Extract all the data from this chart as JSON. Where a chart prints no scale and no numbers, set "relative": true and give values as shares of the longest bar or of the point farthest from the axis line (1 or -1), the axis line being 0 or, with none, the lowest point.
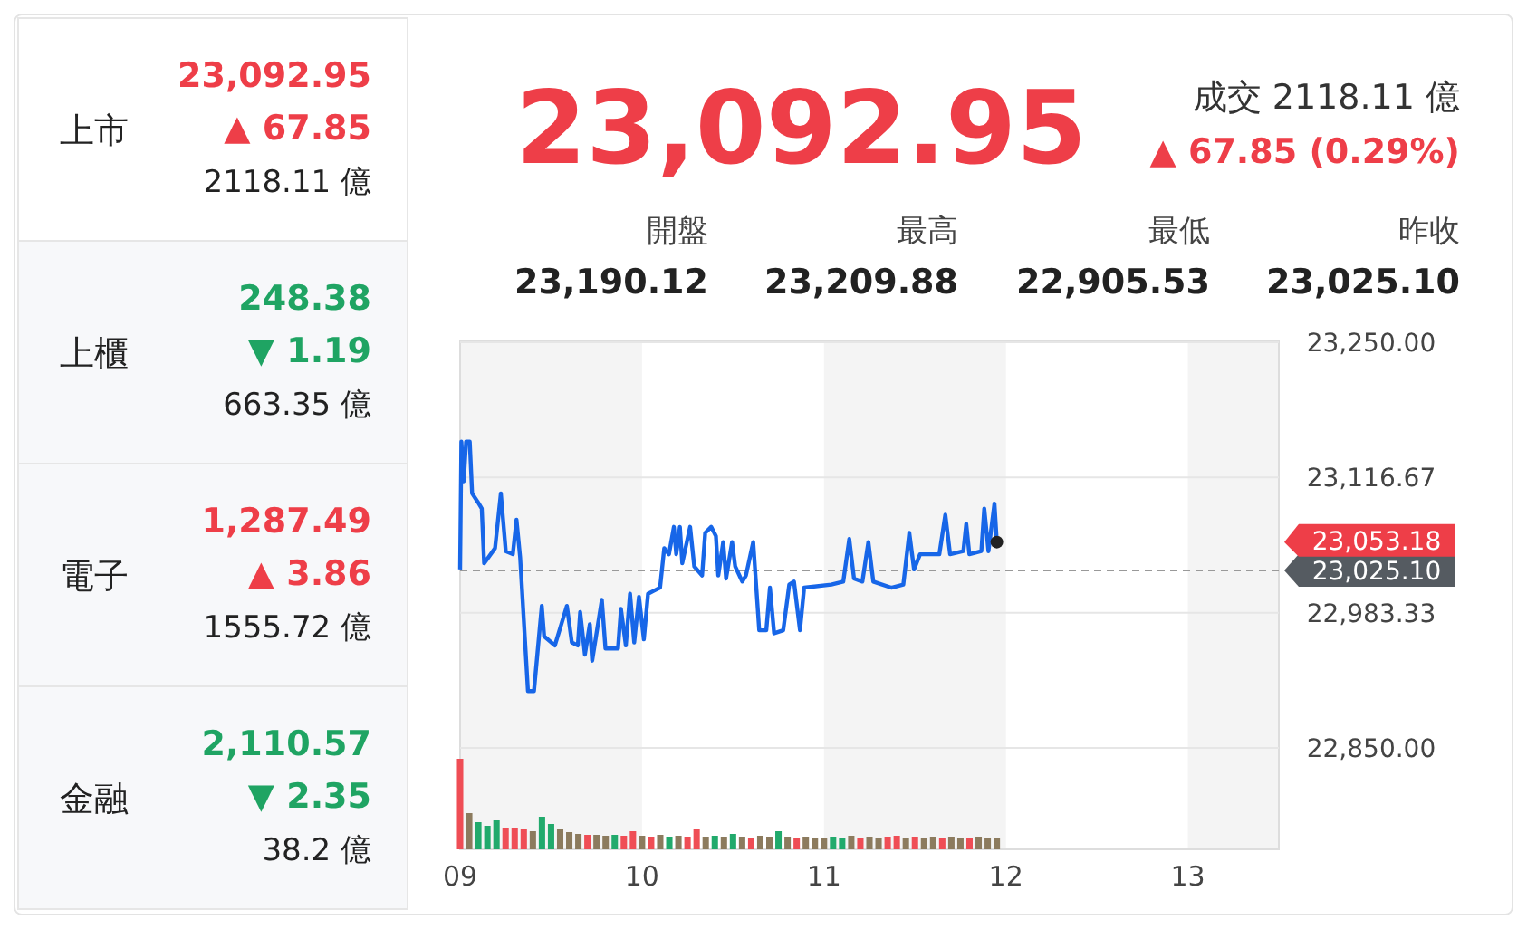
{
  "chart_data": [
    {
      "type": "other",
      "categories": [
        "上市",
        "上櫃",
        "電子",
        "金融"
      ],
      "annotations": [
        "23,092.95",
        "▲ 67.85",
        "2118.11 億",
        "248.38",
        "▼ 1.19",
        "663.35 億",
        "1,287.49",
        "▲ 3.86",
        "1555.72 億",
        "2,110.57",
        "▼ 2.35",
        "38.2 億"
      ]
    },
    {
      "type": "line",
      "title": "23,092.95",
      "annotations": [
        "成交 2118.11 億",
        "▲ 67.85 (0.29%)",
        "開盤",
        "最高",
        "最低",
        "昨收",
        "23,190.12",
        "23,209.88",
        "22,905.53",
        "23,025.10",
        "23,053.18"
      ],
      "xlim": [
        9,
        13.5
      ],
      "ylim": [
        22850,
        23250
      ],
      "yticks": [
        {
          "value": 23250,
          "label": "23,250.00"
        },
        {
          "value": 23116.67,
          "label": "23,116.67"
        },
        {
          "value": 22983.33,
          "label": "22,983.33"
        },
        {
          "value": 22850,
          "label": "22,850.00"
        }
      ],
      "grid": "y",
      "tick_labels": "y",
      "bands": [
        {
          "axis": "x",
          "from": 9,
          "to": 10,
          "color": "#f4f4f4"
        },
        {
          "axis": "x",
          "from": 11,
          "to": 12,
          "color": "#f4f4f4"
        },
        {
          "axis": "x",
          "from": 13,
          "to": 13.5,
          "color": "#f4f4f4"
        }
      ],
      "ref_lines": [
        {
          "axis": "y",
          "value": 23025.1,
          "label": "23,025.10",
          "color": "#999999",
          "line_style": "dashed"
        }
      ],
      "series": [
        {
          "color": "#1766e8",
          "x": [
            9.0,
            9.007,
            9.02,
            9.033,
            9.053,
            9.066,
            9.099,
            9.119,
            9.132,
            9.192,
            9.224,
            9.251,
            9.29,
            9.31,
            9.33,
            9.373,
            9.406,
            9.449,
            9.462,
            9.521,
            9.587,
            9.614,
            9.647,
            9.66,
            9.686,
            9.713,
            9.726,
            9.779,
            9.799,
            9.868,
            9.884,
            9.911,
            9.934,
            9.957,
            9.983,
            10.01,
            10.033,
            10.066,
            10.099,
            10.122,
            10.148,
            10.175,
            10.188,
            10.208,
            10.221,
            10.264,
            10.287,
            10.33,
            10.347,
            10.38,
            10.406,
            10.419,
            10.446,
            10.462,
            10.495,
            10.512,
            10.551,
            10.571,
            10.611,
            10.644,
            10.683,
            10.703,
            10.726,
            10.776,
            10.809,
            10.835,
            10.868,
            10.891,
            11.04,
            11.106,
            11.139,
            11.165,
            11.211,
            11.244,
            11.271,
            11.37,
            11.436,
            11.469,
            11.495,
            11.528,
            11.634,
            11.667,
            11.693,
            11.766,
            11.782,
            11.799,
            11.865,
            11.881,
            11.904,
            11.937,
            11.95
          ],
          "values": [
            23026,
            23152,
            23113,
            23152,
            23152,
            23101,
            23092,
            23086,
            23032,
            23047,
            23101,
            23044,
            23041,
            23075,
            23038,
            22906,
            22906,
            22990,
            22960,
            22951,
            22990,
            22954,
            22951,
            22984,
            22942,
            22972,
            22936,
            22996,
            22948,
            22948,
            22987,
            22951,
            23002,
            22954,
            22999,
            22957,
            23002,
            23005,
            23008,
            23047,
            23041,
            23068,
            23041,
            23068,
            23032,
            23068,
            23029,
            23020,
            23062,
            23068,
            23059,
            23020,
            23053,
            23017,
            23053,
            23029,
            23014,
            23020,
            23053,
            22966,
            22966,
            23008,
            22963,
            22966,
            23011,
            23014,
            22966,
            23008,
            23011,
            23014,
            23056,
            23017,
            23014,
            23053,
            23014,
            23008,
            23011,
            23062,
            23026,
            23041,
            23041,
            23080,
            23041,
            23044,
            23071,
            23041,
            23044,
            23086,
            23044,
            23091,
            23053
          ]
        }
      ]
    },
    {
      "type": "bar",
      "relative": true,
      "tick_labels": "x",
      "xlim": [
        9,
        13.5
      ],
      "xticks": [
        {
          "value": 9,
          "label": "09"
        },
        {
          "value": 10,
          "label": "10"
        },
        {
          "value": 11,
          "label": "11"
        },
        {
          "value": 12,
          "label": "12"
        },
        {
          "value": 13,
          "label": "13"
        }
      ],
      "x": [
        9.0,
        9.05,
        9.1,
        9.15,
        9.2,
        9.25,
        9.3,
        9.35,
        9.4,
        9.45,
        9.5,
        9.55,
        9.6,
        9.65,
        9.7,
        9.75,
        9.8,
        9.85,
        9.9,
        9.95,
        10.0,
        10.05,
        10.1,
        10.15,
        10.2,
        10.25,
        10.3,
        10.35,
        10.4,
        10.45,
        10.5,
        10.55,
        10.6,
        10.65,
        10.7,
        10.75,
        10.8,
        10.85,
        10.9,
        10.95,
        11.0,
        11.05,
        11.1,
        11.15,
        11.2,
        11.25,
        11.3,
        11.35,
        11.4,
        11.45,
        11.5,
        11.55,
        11.6,
        11.65,
        11.7,
        11.75,
        11.8,
        11.85,
        11.9,
        11.95
      ],
      "values": [
        1.0,
        0.4,
        0.3,
        0.26,
        0.32,
        0.24,
        0.24,
        0.22,
        0.2,
        0.36,
        0.28,
        0.22,
        0.19,
        0.17,
        0.16,
        0.16,
        0.15,
        0.16,
        0.15,
        0.2,
        0.15,
        0.14,
        0.16,
        0.14,
        0.15,
        0.14,
        0.22,
        0.14,
        0.15,
        0.14,
        0.17,
        0.14,
        0.13,
        0.15,
        0.14,
        0.2,
        0.14,
        0.13,
        0.14,
        0.13,
        0.13,
        0.14,
        0.13,
        0.15,
        0.13,
        0.14,
        0.13,
        0.14,
        0.15,
        0.13,
        0.14,
        0.13,
        0.14,
        0.13,
        0.14,
        0.13,
        0.13,
        0.14,
        0.13,
        0.13
      ],
      "colors": [
        "#ef4d55",
        "#8c7b5e",
        "#21aa6c",
        "#21aa6c",
        "#21aa6c",
        "#ef4d55",
        "#ef4d55",
        "#ef4d55",
        "#8c7b5e",
        "#21aa6c",
        "#21aa6c",
        "#8c7b5e",
        "#8c7b5e",
        "#8c7b5e",
        "#ef4d55",
        "#8c7b5e",
        "#8c7b5e",
        "#21aa6c",
        "#ef4d55",
        "#ef4d55",
        "#8c7b5e",
        "#ef4d55",
        "#8c7b5e",
        "#21aa6c",
        "#8c7b5e",
        "#ef4d55",
        "#ef4d55",
        "#8c7b5e",
        "#21aa6c",
        "#8c7b5e",
        "#21aa6c",
        "#8c7b5e",
        "#ef4d55",
        "#8c7b5e",
        "#8c7b5e",
        "#21aa6c",
        "#8c7b5e",
        "#ef4d55",
        "#8c7b5e",
        "#8c7b5e",
        "#8c7b5e",
        "#21aa6c",
        "#21aa6c",
        "#8c7b5e",
        "#ef4d55",
        "#8c7b5e",
        "#8c7b5e",
        "#ef4d55",
        "#ef4d55",
        "#8c7b5e",
        "#ef4d55",
        "#8c7b5e",
        "#8c7b5e",
        "#ef4d55",
        "#8c7b5e",
        "#8c7b5e",
        "#ef4d55",
        "#8c7b5e",
        "#8c7b5e",
        "#8c7b5e"
      ]
    }
  ]
}
